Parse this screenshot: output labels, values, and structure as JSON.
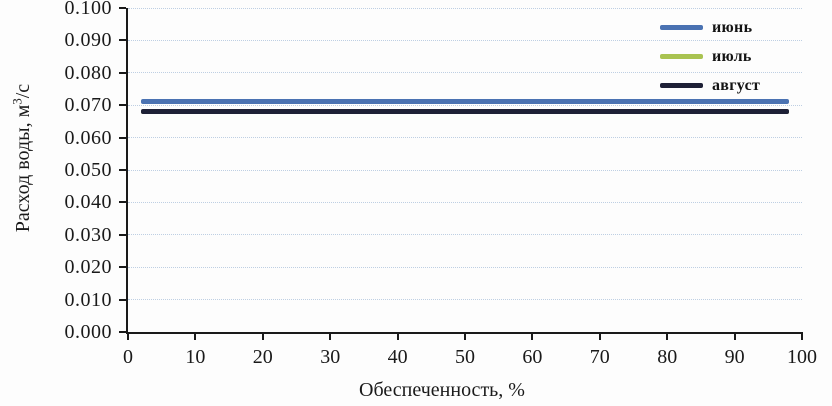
{
  "figure": {
    "y_axis": {
      "title_pre": "Расход воды, м",
      "title_sup": "3",
      "title_post": "/с",
      "tick_labels": [
        "0.000",
        "0.010",
        "0.020",
        "0.030",
        "0.040",
        "0.050",
        "0.060",
        "0.070",
        "0.080",
        "0.090",
        "0.100"
      ]
    },
    "x_axis": {
      "title": "Обеспеченность, %",
      "tick_labels": [
        "0",
        "10",
        "20",
        "30",
        "40",
        "50",
        "60",
        "70",
        "80",
        "90",
        "100"
      ]
    }
  },
  "chart_data": {
    "type": "line",
    "title": "",
    "xlabel": "Обеспеченность, %",
    "ylabel": "Расход воды, м³/с",
    "xlim": [
      0,
      100
    ],
    "ylim": [
      0,
      0.1
    ],
    "x_tick_step": 10,
    "y_tick_step": 0.01,
    "grid": "horizontal dotted light-blue lines at every y tick",
    "legend_position": "top-right, borderless",
    "series": [
      {
        "name": "июнь",
        "color": "#4a72b2",
        "x": [
          2,
          98
        ],
        "values": [
          0.071,
          0.071
        ]
      },
      {
        "name": "июль",
        "color": "#a9c351",
        "x": [
          2,
          98
        ],
        "values": [
          0.068,
          0.068
        ],
        "note": "completely hidden behind the август line"
      },
      {
        "name": "август",
        "color": "#1e2036",
        "x": [
          2,
          98
        ],
        "values": [
          0.068,
          0.068
        ]
      }
    ]
  },
  "colors": {
    "axis": "#1a1a1a",
    "gridline": "#becfe3",
    "background": "#fdfdfd"
  }
}
